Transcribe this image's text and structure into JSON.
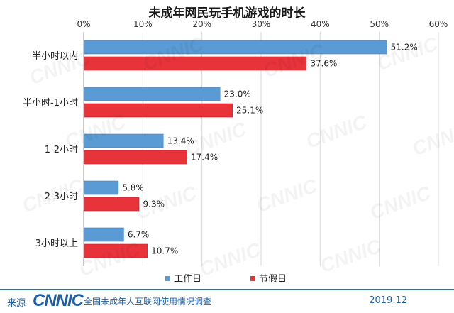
{
  "chart_data": {
    "type": "bar",
    "orientation": "horizontal",
    "title": "未成年网民玩手机游戏的时长",
    "categories": [
      "半小时以内",
      "半小时-1小时",
      "1-2小时",
      "2-3小时",
      "3小时以上"
    ],
    "series": [
      {
        "name": "工作日",
        "color": "#5b9bd5",
        "values": [
          51.2,
          23.0,
          13.4,
          5.8,
          6.7
        ],
        "labels": [
          "51.2%",
          "23.0%",
          "13.4%",
          "5.8%",
          "6.7%"
        ]
      },
      {
        "name": "节假日",
        "color": "#e8333b",
        "values": [
          37.6,
          25.1,
          17.4,
          9.3,
          10.7
        ],
        "labels": [
          "37.6%",
          "25.1%",
          "17.4%",
          "9.3%",
          "10.7%"
        ]
      }
    ],
    "xlim": [
      0,
      60
    ],
    "xticks": [
      "0%",
      "10%",
      "20%",
      "30%",
      "40%",
      "50%",
      "60%"
    ],
    "xlabel": "",
    "ylabel": "",
    "grid": true,
    "legend_position": "bottom"
  },
  "footer": {
    "source_label": "来源",
    "logo_text": "CNNIC",
    "survey_name": "全国未成年人互联网使用情况调查",
    "date": "2019.12"
  }
}
